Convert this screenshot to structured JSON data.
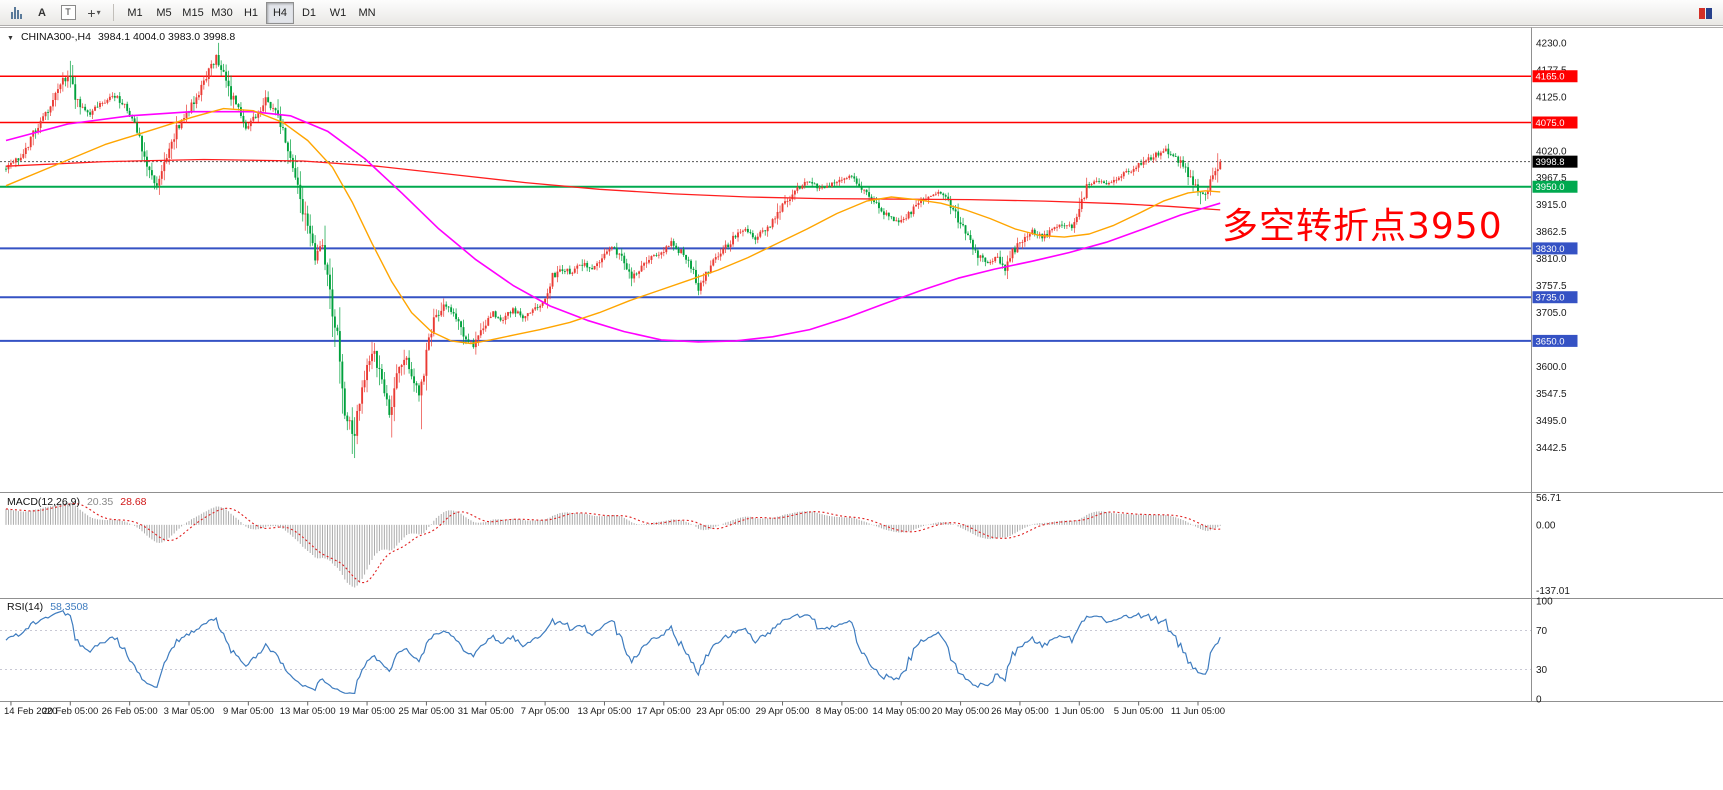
{
  "toolbar": {
    "label_a": "A",
    "label_t": "T",
    "crosshair_glyph": "+",
    "caret_glyph": "▾",
    "timeframes": [
      "M1",
      "M5",
      "M15",
      "M30",
      "H1",
      "H4",
      "D1",
      "W1",
      "MN"
    ],
    "active_timeframe": "H4"
  },
  "main_chart": {
    "dropdown_glyph": "▼",
    "symbol_label": "CHINA300-,H4",
    "ohlc_text": "3984.1 4004.0 3983.0 3998.8",
    "annotation": {
      "text": "多空转折点3950",
      "color": "#FF0000"
    }
  },
  "macd_panel": {
    "label": "MACD(12,26,9)",
    "value": "20.35",
    "signal": "28.68",
    "axis": [
      56.71,
      0,
      -137.01
    ]
  },
  "rsi_panel": {
    "label": "RSI(14)",
    "value": "58.3508",
    "axis": [
      100,
      70,
      30,
      0
    ],
    "levels": [
      70,
      30
    ]
  },
  "colors": {
    "candle_up": "#EA3B34",
    "candle_down": "#00A13C",
    "ma_fast": "#FFA500",
    "ma_mid": "#FF00FF",
    "ma_slow": "#FF1F1F",
    "macd_hist": "#ABABAB",
    "macd_signal": "#E01F1F",
    "rsi": "#3E7CBF",
    "hline_red": "#FF0000",
    "hline_green": "#00A94F",
    "hline_blue": "#3552C4",
    "current_badge": "#000000"
  },
  "chart_data": {
    "type": "candlestick",
    "symbol": "CHINA300-",
    "timeframe": "H4",
    "bars": 492,
    "last_bar": {
      "open": 3984.1,
      "high": 4004.0,
      "low": 3983.0,
      "close": 3998.8
    },
    "y_axis": {
      "ticks": [
        4230.0,
        4177.5,
        4125.0,
        4020.0,
        3967.5,
        3915.0,
        3862.5,
        3810.0,
        3757.5,
        3705.0,
        3600.0,
        3547.5,
        3495.0,
        3442.5
      ],
      "step": 52.5,
      "visible_range": [
        3360,
        4255
      ]
    },
    "x_axis": {
      "bars_per_label": 24,
      "labels": [
        {
          "text": "14 Feb 2020",
          "bar": 2
        },
        {
          "text": "20 Feb 05:00",
          "bar": 26
        },
        {
          "text": "26 Feb 05:00",
          "bar": 50
        },
        {
          "text": "3 Mar 05:00",
          "b": 0,
          "bar": 74
        },
        {
          "text": "9 Mar 05:00",
          "bar": 98
        },
        {
          "text": "13 Mar 05:00",
          "bar": 122
        },
        {
          "text": "19 Mar 05:00",
          "bar": 146
        },
        {
          "text": "25 Mar 05:00",
          "bar": 170
        },
        {
          "text": "31 Mar 05:00",
          "bar": 194
        },
        {
          "text": "7 Apr 05:00",
          "bar": 218
        },
        {
          "text": "13 Apr 05:00",
          "bar": 242
        },
        {
          "text": "17 Apr 05:00",
          "bar": 266
        },
        {
          "text": "23 Apr 05:00",
          "bar": 290
        },
        {
          "text": "29 Apr 05:00",
          "bar": 314
        },
        {
          "text": "8 May 05:00",
          "bar": 338
        },
        {
          "text": "14 May 05:00",
          "bar": 362
        },
        {
          "text": "20 May 05:00",
          "bar": 386
        },
        {
          "text": "26 May 05:00",
          "bar": 410
        },
        {
          "text": "1 Jun 05:00",
          "bar": 434
        },
        {
          "text": "5 Jun 05:00",
          "bar": 458
        },
        {
          "text": "11 Jun 05:00",
          "bar": 482
        }
      ]
    },
    "hlines": [
      {
        "price": 4165.0,
        "color": "#FF0000",
        "width": 1.4
      },
      {
        "price": 4075.0,
        "color": "#FF0000",
        "width": 1.4
      },
      {
        "price": 3950.0,
        "color": "#00A94F",
        "width": 2
      },
      {
        "price": 3830.0,
        "color": "#3552C4",
        "width": 2
      },
      {
        "price": 3735.0,
        "color": "#3552C4",
        "width": 2
      },
      {
        "price": 3650.0,
        "color": "#3552C4",
        "width": 2
      }
    ],
    "annotations": [
      {
        "text": "多空转折点3950",
        "color": "#FF0000",
        "approx_price": 3880,
        "position": "right-blank-area"
      }
    ],
    "price_path_anchors": [
      [
        0,
        3985
      ],
      [
        4,
        3995
      ],
      [
        8,
        4015
      ],
      [
        12,
        4055
      ],
      [
        16,
        4085
      ],
      [
        20,
        4120
      ],
      [
        24,
        4155
      ],
      [
        26,
        4170
      ],
      [
        28,
        4140
      ],
      [
        31,
        4105
      ],
      [
        34,
        4090
      ],
      [
        38,
        4110
      ],
      [
        42,
        4120
      ],
      [
        46,
        4128
      ],
      [
        50,
        4098
      ],
      [
        54,
        4062
      ],
      [
        58,
        3995
      ],
      [
        62,
        3955
      ],
      [
        66,
        4005
      ],
      [
        70,
        4060
      ],
      [
        76,
        4108
      ],
      [
        82,
        4165
      ],
      [
        86,
        4205
      ],
      [
        89,
        4170
      ],
      [
        92,
        4130
      ],
      [
        95,
        4095
      ],
      [
        98,
        4058
      ],
      [
        102,
        4088
      ],
      [
        106,
        4120
      ],
      [
        110,
        4098
      ],
      [
        114,
        4042
      ],
      [
        118,
        3972
      ],
      [
        122,
        3882
      ],
      [
        126,
        3812
      ],
      [
        129,
        3845
      ],
      [
        132,
        3762
      ],
      [
        135,
        3645
      ],
      [
        138,
        3525
      ],
      [
        141,
        3458
      ],
      [
        144,
        3532
      ],
      [
        147,
        3592
      ],
      [
        150,
        3642
      ],
      [
        153,
        3562
      ],
      [
        156,
        3512
      ],
      [
        159,
        3578
      ],
      [
        162,
        3622
      ],
      [
        165,
        3582
      ],
      [
        168,
        3548
      ],
      [
        171,
        3622
      ],
      [
        174,
        3682
      ],
      [
        178,
        3722
      ],
      [
        182,
        3702
      ],
      [
        186,
        3662
      ],
      [
        190,
        3642
      ],
      [
        194,
        3680
      ],
      [
        198,
        3702
      ],
      [
        202,
        3692
      ],
      [
        206,
        3712
      ],
      [
        210,
        3697
      ],
      [
        214,
        3710
      ],
      [
        218,
        3722
      ],
      [
        222,
        3772
      ],
      [
        226,
        3792
      ],
      [
        230,
        3782
      ],
      [
        234,
        3802
      ],
      [
        238,
        3792
      ],
      [
        242,
        3812
      ],
      [
        246,
        3832
      ],
      [
        250,
        3812
      ],
      [
        254,
        3777
      ],
      [
        258,
        3792
      ],
      [
        262,
        3812
      ],
      [
        266,
        3822
      ],
      [
        270,
        3842
      ],
      [
        274,
        3822
      ],
      [
        278,
        3792
      ],
      [
        281,
        3757
      ],
      [
        284,
        3782
      ],
      [
        288,
        3812
      ],
      [
        292,
        3832
      ],
      [
        296,
        3857
      ],
      [
        300,
        3872
      ],
      [
        304,
        3852
      ],
      [
        308,
        3867
      ],
      [
        312,
        3887
      ],
      [
        314,
        3907
      ],
      [
        318,
        3932
      ],
      [
        322,
        3952
      ],
      [
        326,
        3962
      ],
      [
        330,
        3947
      ],
      [
        334,
        3952
      ],
      [
        338,
        3962
      ],
      [
        342,
        3972
      ],
      [
        346,
        3952
      ],
      [
        350,
        3932
      ],
      [
        354,
        3907
      ],
      [
        358,
        3892
      ],
      [
        362,
        3882
      ],
      [
        366,
        3897
      ],
      [
        370,
        3917
      ],
      [
        374,
        3932
      ],
      [
        378,
        3937
      ],
      [
        382,
        3922
      ],
      [
        386,
        3887
      ],
      [
        390,
        3852
      ],
      [
        394,
        3817
      ],
      [
        398,
        3802
      ],
      [
        402,
        3812
      ],
      [
        405,
        3792
      ],
      [
        408,
        3822
      ],
      [
        412,
        3847
      ],
      [
        416,
        3862
      ],
      [
        420,
        3852
      ],
      [
        424,
        3867
      ],
      [
        428,
        3877
      ],
      [
        432,
        3872
      ],
      [
        434,
        3892
      ],
      [
        438,
        3952
      ],
      [
        442,
        3962
      ],
      [
        446,
        3957
      ],
      [
        450,
        3967
      ],
      [
        454,
        3977
      ],
      [
        458,
        3987
      ],
      [
        462,
        4002
      ],
      [
        466,
        4012
      ],
      [
        470,
        4022
      ],
      [
        474,
        4007
      ],
      [
        478,
        3987
      ],
      [
        482,
        3947
      ],
      [
        485,
        3932
      ],
      [
        488,
        3957
      ],
      [
        490,
        3984
      ],
      [
        491,
        3998.8
      ]
    ],
    "extremes": [
      {
        "bar": 26,
        "high": 4195
      },
      {
        "bar": 86,
        "high": 4230
      },
      {
        "bar": 140,
        "low": 3430
      },
      {
        "bar": 141,
        "low": 3422
      },
      {
        "bar": 156,
        "low": 3462
      },
      {
        "bar": 168,
        "low": 3478
      },
      {
        "bar": 470,
        "high": 4026
      },
      {
        "bar": 483,
        "low": 3916
      }
    ],
    "ma_lines": [
      {
        "name": "ma-slow-red-line",
        "color": "#FF1F1F",
        "width": 1.3,
        "points": [
          [
            0,
            3990
          ],
          [
            40,
            3999
          ],
          [
            80,
            4003
          ],
          [
            120,
            4000
          ],
          [
            150,
            3990
          ],
          [
            180,
            3974
          ],
          [
            210,
            3958
          ],
          [
            240,
            3945
          ],
          [
            270,
            3936
          ],
          [
            300,
            3930
          ],
          [
            330,
            3927
          ],
          [
            360,
            3926
          ],
          [
            390,
            3925
          ],
          [
            420,
            3922
          ],
          [
            450,
            3917
          ],
          [
            470,
            3912
          ],
          [
            491,
            3905
          ]
        ]
      },
      {
        "name": "ma-mid-magenta-line",
        "color": "#FF00FF",
        "width": 1.6,
        "points": [
          [
            0,
            4040
          ],
          [
            25,
            4072
          ],
          [
            50,
            4088
          ],
          [
            75,
            4096
          ],
          [
            100,
            4096
          ],
          [
            115,
            4088
          ],
          [
            130,
            4058
          ],
          [
            145,
            4005
          ],
          [
            160,
            3938
          ],
          [
            175,
            3868
          ],
          [
            190,
            3808
          ],
          [
            205,
            3758
          ],
          [
            220,
            3718
          ],
          [
            235,
            3690
          ],
          [
            250,
            3668
          ],
          [
            265,
            3652
          ],
          [
            280,
            3648
          ],
          [
            295,
            3650
          ],
          [
            310,
            3658
          ],
          [
            325,
            3672
          ],
          [
            340,
            3695
          ],
          [
            355,
            3722
          ],
          [
            370,
            3748
          ],
          [
            385,
            3772
          ],
          [
            400,
            3790
          ],
          [
            415,
            3805
          ],
          [
            430,
            3822
          ],
          [
            445,
            3842
          ],
          [
            460,
            3868
          ],
          [
            475,
            3895
          ],
          [
            491,
            3918
          ]
        ]
      },
      {
        "name": "ma-fast-orange-line",
        "color": "#FFA500",
        "width": 1.4,
        "points": [
          [
            0,
            3952
          ],
          [
            20,
            3992
          ],
          [
            40,
            4032
          ],
          [
            60,
            4062
          ],
          [
            75,
            4085
          ],
          [
            88,
            4102
          ],
          [
            100,
            4098
          ],
          [
            112,
            4075
          ],
          [
            122,
            4040
          ],
          [
            132,
            3988
          ],
          [
            140,
            3920
          ],
          [
            148,
            3840
          ],
          [
            156,
            3765
          ],
          [
            164,
            3705
          ],
          [
            172,
            3668
          ],
          [
            180,
            3650
          ],
          [
            188,
            3645
          ],
          [
            196,
            3652
          ],
          [
            206,
            3662
          ],
          [
            216,
            3672
          ],
          [
            228,
            3686
          ],
          [
            240,
            3705
          ],
          [
            252,
            3728
          ],
          [
            264,
            3748
          ],
          [
            276,
            3768
          ],
          [
            288,
            3788
          ],
          [
            300,
            3812
          ],
          [
            312,
            3840
          ],
          [
            324,
            3868
          ],
          [
            336,
            3898
          ],
          [
            348,
            3922
          ],
          [
            358,
            3930
          ],
          [
            368,
            3925
          ],
          [
            378,
            3918
          ],
          [
            388,
            3905
          ],
          [
            398,
            3888
          ],
          [
            408,
            3868
          ],
          [
            418,
            3855
          ],
          [
            428,
            3852
          ],
          [
            438,
            3858
          ],
          [
            448,
            3875
          ],
          [
            458,
            3898
          ],
          [
            468,
            3922
          ],
          [
            478,
            3938
          ],
          [
            485,
            3942
          ],
          [
            491,
            3940
          ]
        ]
      }
    ],
    "indicators": {
      "macd": {
        "params": [
          12,
          26,
          9
        ],
        "current": 20.35,
        "current_signal": 28.68,
        "axis": [
          56.71,
          0,
          -137.01
        ]
      },
      "rsi": {
        "period": 14,
        "current": 58.3508,
        "axis": [
          100,
          70,
          30,
          0
        ],
        "levels": [
          70,
          30
        ]
      }
    }
  }
}
